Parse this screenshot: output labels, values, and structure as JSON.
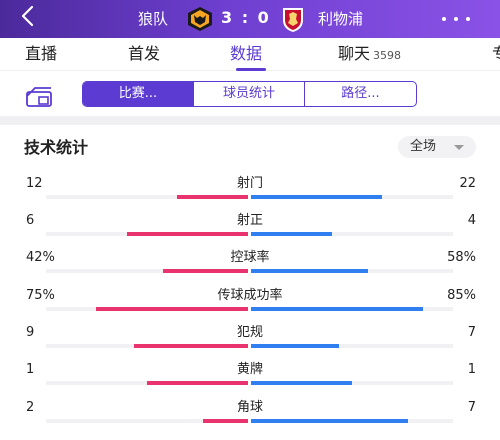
{
  "header": {
    "back_icon": "back-chevron-icon",
    "home_team": "狼队",
    "away_team": "利物浦",
    "score": "3 : 0",
    "home_logo": "wolves-logo",
    "away_logo": "liverpool-logo",
    "more_icon": "more-dots-icon"
  },
  "tabs": [
    {
      "label": "直播",
      "active": false
    },
    {
      "label": "首发",
      "active": false
    },
    {
      "label": "数据",
      "active": true
    },
    {
      "label": "聊天",
      "count": "3598",
      "active": false
    },
    {
      "label": "专",
      "active": false
    }
  ],
  "segments": [
    {
      "label": "比赛...",
      "active": true
    },
    {
      "label": "球员统计",
      "active": false
    },
    {
      "label": "路径...",
      "active": false
    }
  ],
  "stats_section": {
    "title": "技术统计",
    "period": "全场"
  },
  "colors": {
    "home_bar": "#e8336f",
    "away_bar": "#2f7ff0",
    "accent": "#5b3bd1"
  },
  "stats": [
    {
      "name": "射门",
      "home": "12",
      "away": "22",
      "home_share": 0.353,
      "away_share": 0.647
    },
    {
      "name": "射正",
      "home": "6",
      "away": "4",
      "home_share": 0.6,
      "away_share": 0.4
    },
    {
      "name": "控球率",
      "home": "42%",
      "away": "58%",
      "home_share": 0.42,
      "away_share": 0.58
    },
    {
      "name": "传球成功率",
      "home": "75%",
      "away": "85%",
      "home_share": 0.75,
      "away_share": 0.85
    },
    {
      "name": "犯规",
      "home": "9",
      "away": "7",
      "home_share": 0.5625,
      "away_share": 0.4375
    },
    {
      "name": "黄牌",
      "home": "1",
      "away": "1",
      "home_share": 0.5,
      "away_share": 0.5
    },
    {
      "name": "角球",
      "home": "2",
      "away": "7",
      "home_share": 0.222,
      "away_share": 0.778
    }
  ]
}
